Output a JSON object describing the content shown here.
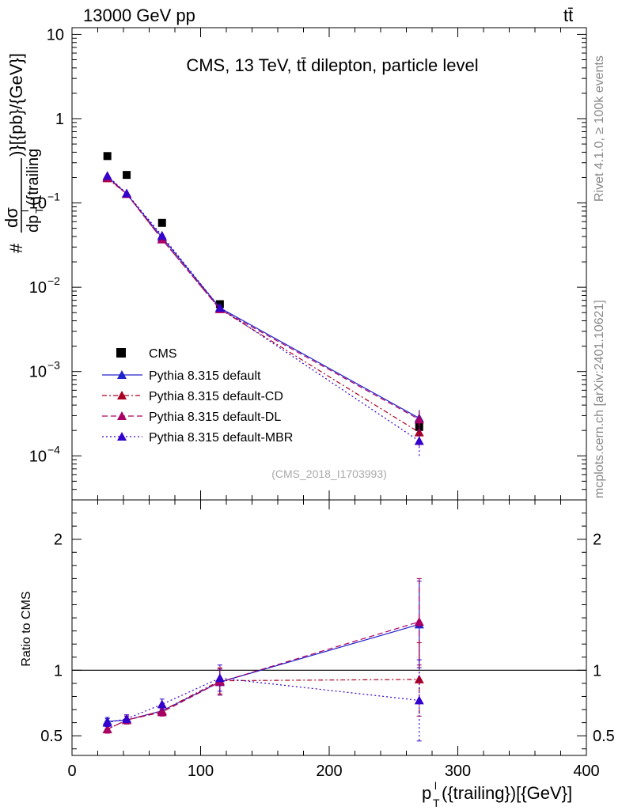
{
  "header": {
    "left": "13000 GeV pp",
    "right": "tt̄"
  },
  "side_labels": {
    "rivet": "Rivet 4.1.0, ≥ 100k events",
    "mcplots": "mcplots.cern.ch [arXiv:2401.10621]"
  },
  "colors": {
    "cms": "#000000",
    "default": "#2222cc",
    "cd": "#aa0022",
    "dl": "#aa0066",
    "mbr": "#3300cc"
  },
  "chart_data": [
    {
      "type": "line",
      "scale": "log",
      "title": "CMS, 13 TeV, tt̄ dilepton, particle level",
      "watermark": "(CMS_2018_I1703993)",
      "ylabel": "#dσ/dp_T^l({trailing})[{pb}/{GeV}]",
      "ylabel_parts": {
        "hash": "#",
        "num": "dσ",
        "den_sym": "dp",
        "den_sub": "T",
        "den_sup": "l",
        "den_rest": "({trailing",
        "tail": ")}[{pb}/{GeV}]"
      },
      "xlim": [
        0,
        400
      ],
      "ylim": [
        3e-05,
        12
      ],
      "yticks": [
        {
          "v": 10,
          "label": "10"
        },
        {
          "v": 1,
          "label": "1"
        },
        {
          "v": 0.1,
          "base": "10",
          "exp": "−1"
        },
        {
          "v": 0.01,
          "base": "10",
          "exp": "−2"
        },
        {
          "v": 0.001,
          "base": "10",
          "exp": "−3"
        },
        {
          "v": 0.0001,
          "base": "10",
          "exp": "−4"
        }
      ],
      "x": [
        27.5,
        42.5,
        70,
        115,
        270
      ],
      "series": [
        {
          "name": "CMS",
          "key": "cms",
          "marker": "square",
          "values": [
            0.36,
            0.215,
            0.058,
            0.0063,
            0.00022
          ],
          "err": [
            0,
            0,
            0,
            0,
            2e-05
          ]
        },
        {
          "name": "Pythia 8.315 default",
          "key": "default",
          "marker": "triangle",
          "dash": "",
          "values": [
            0.205,
            0.128,
            0.039,
            0.0057,
            0.00028
          ],
          "err": [
            0,
            0,
            0,
            0,
            7e-05
          ]
        },
        {
          "name": "Pythia 8.315 default-CD",
          "key": "cd",
          "marker": "triangle",
          "dash": "6,3,2,3",
          "values": [
            0.196,
            0.128,
            0.037,
            0.0055,
            0.00019
          ],
          "err": [
            0,
            0,
            0,
            0,
            6e-05
          ]
        },
        {
          "name": "Pythia 8.315 default-DL",
          "key": "dl",
          "marker": "triangle",
          "dash": "7,4",
          "values": [
            0.2,
            0.128,
            0.037,
            0.0055,
            0.00027
          ],
          "err": [
            0,
            0,
            0,
            0,
            7e-05
          ]
        },
        {
          "name": "Pythia 8.315 default-MBR",
          "key": "mbr",
          "marker": "triangle",
          "dash": "2,3",
          "values": [
            0.21,
            0.13,
            0.041,
            0.0057,
            0.00015
          ],
          "err": [
            0,
            0,
            0,
            0,
            5e-05
          ]
        }
      ]
    },
    {
      "type": "line",
      "scale": "linear",
      "ylabel": "Ratio to CMS",
      "xlabel_parts": {
        "p": "p",
        "sub": "T",
        "sup": "l",
        "rest": "({trailing})[{GeV}]"
      },
      "xlim": [
        0,
        400
      ],
      "ylim": [
        0.35,
        2.3
      ],
      "yticks": [
        {
          "v": 0.5,
          "label": "0.5"
        },
        {
          "v": 1,
          "label": "1"
        },
        {
          "v": 2,
          "label": "2"
        }
      ],
      "xticks": [
        {
          "v": 0,
          "label": "0"
        },
        {
          "v": 100,
          "label": "100"
        },
        {
          "v": 200,
          "label": "200"
        },
        {
          "v": 300,
          "label": "300"
        },
        {
          "v": 400,
          "label": "400"
        }
      ],
      "reference": 1,
      "x": [
        27.5,
        42.5,
        70,
        115,
        270
      ],
      "series": [
        {
          "name": "Pythia 8.315 default",
          "key": "default",
          "dash": "",
          "values": [
            0.61,
            0.62,
            0.69,
            0.91,
            1.35
          ],
          "err": [
            0.03,
            0.03,
            0.03,
            0.1,
            0.33
          ]
        },
        {
          "name": "Pythia 8.315 default-CD",
          "key": "cd",
          "dash": "6,3,2,3",
          "values": [
            0.55,
            0.62,
            0.69,
            0.92,
            0.93
          ],
          "err": [
            0.03,
            0.03,
            0.03,
            0.1,
            0.28
          ]
        },
        {
          "name": "Pythia 8.315 default-DL",
          "key": "dl",
          "dash": "7,4",
          "values": [
            0.55,
            0.62,
            0.68,
            0.91,
            1.37
          ],
          "err": [
            0.03,
            0.03,
            0.03,
            0.1,
            0.33
          ]
        },
        {
          "name": "Pythia 8.315 default-MBR",
          "key": "mbr",
          "dash": "2,3",
          "values": [
            0.6,
            0.63,
            0.74,
            0.94,
            0.77
          ],
          "err": [
            0.03,
            0.03,
            0.04,
            0.1,
            0.31
          ]
        }
      ]
    }
  ]
}
